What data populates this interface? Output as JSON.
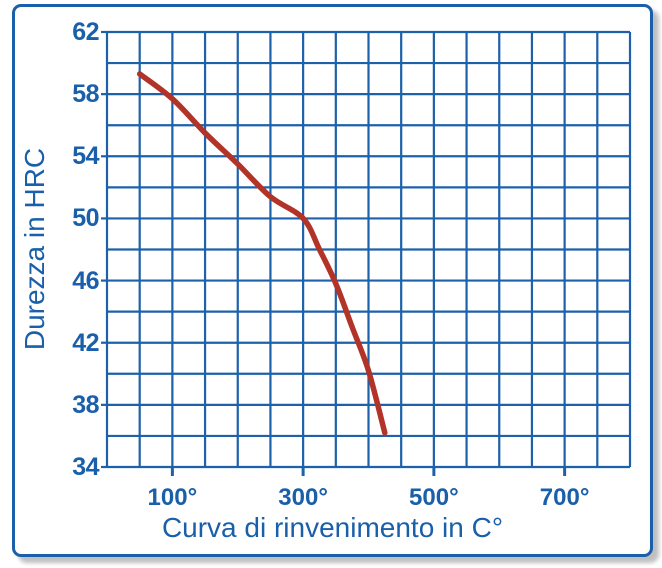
{
  "colors": {
    "accent_blue": "#1a5fa9",
    "curve_red": "#b23428",
    "grid_blue": "#1d61ab",
    "frame_shadow_gray": "#bfbfbf",
    "background": "#ffffff"
  },
  "chart_data": {
    "type": "line",
    "title": "",
    "xlabel": "Curva di rinvenimento in C°",
    "ylabel": "Durezza in HRC",
    "xlim": [
      0,
      800
    ],
    "ylim": [
      34,
      62
    ],
    "x_grid_step": 50,
    "y_grid_step": 2,
    "grid": true,
    "x_ticks": [
      100,
      300,
      500,
      700
    ],
    "x_tick_labels": [
      "100°",
      "300°",
      "500°",
      "700°"
    ],
    "y_ticks": [
      62,
      58,
      54,
      50,
      46,
      42,
      38,
      34
    ],
    "y_tick_labels": [
      "62",
      "58",
      "54",
      "50",
      "46",
      "42",
      "38",
      "34"
    ],
    "legend": "none",
    "series": [
      {
        "name": "curva-di-rinvenimento",
        "color": "#b23428",
        "x": [
          50,
          100,
          150,
          200,
          250,
          300,
          325,
          350,
          375,
          400,
          425
        ],
        "y": [
          59.3,
          57.7,
          55.5,
          53.5,
          51.4,
          50.0,
          48.0,
          45.8,
          43.0,
          40.2,
          36.2
        ]
      }
    ]
  }
}
